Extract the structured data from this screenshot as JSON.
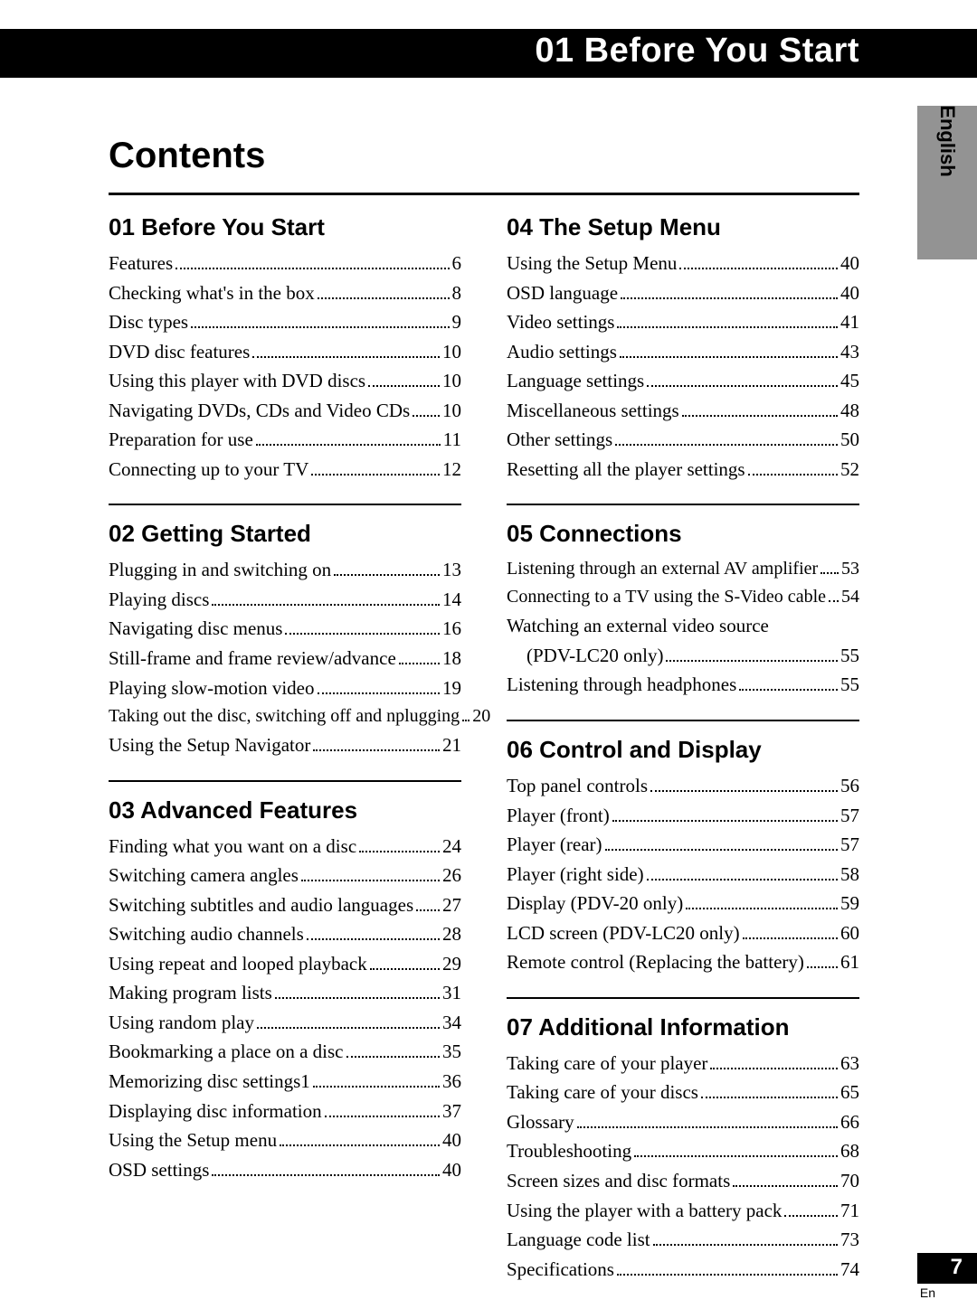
{
  "header": {
    "banner_title": "01 Before You Start",
    "side_tab_label": "English"
  },
  "title": "Contents",
  "columns": [
    {
      "sections": [
        {
          "heading": "01 Before You Start",
          "items": [
            {
              "label": "Features",
              "page": "6"
            },
            {
              "label": "Checking what's in the box",
              "page": "8"
            },
            {
              "label": "Disc types",
              "page": "9"
            },
            {
              "label": "DVD disc features",
              "page": "10"
            },
            {
              "label": "Using this player with DVD discs",
              "page": "10"
            },
            {
              "label": "Navigating DVDs, CDs and Video CDs",
              "page": "10"
            },
            {
              "label": "Preparation for use",
              "page": "11"
            },
            {
              "label": "Connecting up to your TV",
              "page": "12"
            }
          ]
        },
        {
          "heading": "02 Getting Started",
          "items": [
            {
              "label": "Plugging in and switching on",
              "page": "13"
            },
            {
              "label": "Playing discs",
              "page": "14"
            },
            {
              "label": "Navigating disc menus",
              "page": "16"
            },
            {
              "label": "Still-frame and frame review/advance",
              "page": "18"
            },
            {
              "label": "Playing slow-motion video",
              "page": "19"
            },
            {
              "label": "Taking out the disc, switching off and nplugging",
              "page": "20",
              "tight": true
            },
            {
              "label": "Using the Setup Navigator",
              "page": "21"
            }
          ]
        },
        {
          "heading": "03 Advanced Features",
          "items": [
            {
              "label": "Finding what you want on a disc",
              "page": "24"
            },
            {
              "label": "Switching camera angles",
              "page": "26"
            },
            {
              "label": "Switching subtitles and audio languages",
              "page": "27"
            },
            {
              "label": "Switching audio channels",
              "page": "28"
            },
            {
              "label": "Using repeat and looped playback",
              "page": "29"
            },
            {
              "label": "Making program lists",
              "page": "31"
            },
            {
              "label": "Using random play",
              "page": "34"
            },
            {
              "label": "Bookmarking a place on a disc",
              "page": "35"
            },
            {
              "label": "Memorizing disc settings1",
              "page": "36"
            },
            {
              "label": "Displaying disc information",
              "page": "37"
            },
            {
              "label": "Using the Setup menu",
              "page": "40"
            },
            {
              "label": "OSD settings",
              "page": "40"
            }
          ]
        }
      ]
    },
    {
      "sections": [
        {
          "heading": "04 The Setup Menu",
          "items": [
            {
              "label": "Using the Setup Menu",
              "page": "40"
            },
            {
              "label": "OSD language",
              "page": "40"
            },
            {
              "label": "Video settings",
              "page": "41"
            },
            {
              "label": "Audio settings",
              "page": "43"
            },
            {
              "label": "Language settings",
              "page": "45"
            },
            {
              "label": "Miscellaneous settings",
              "page": "48"
            },
            {
              "label": "Other settings",
              "page": "50"
            },
            {
              "label": "Resetting all the player settings",
              "page": "52"
            }
          ]
        },
        {
          "heading": "05 Connections",
          "items": [
            {
              "label": "Listening through an external AV amplifier",
              "page": "53",
              "tight": true
            },
            {
              "label": "Connecting to a TV using the S-Video cable",
              "page": "54",
              "tight": true
            },
            {
              "label": "Watching an external video source (PDV-LC20 only)",
              "page": "55",
              "indent_wrap": true
            },
            {
              "label": "Listening through headphones",
              "page": "55"
            }
          ]
        },
        {
          "heading": "06 Control and Display",
          "items": [
            {
              "label": "Top panel controls",
              "page": "56"
            },
            {
              "label": "Player (front)",
              "page": "57"
            },
            {
              "label": "Player (rear)",
              "page": "57"
            },
            {
              "label": "Player (right side)",
              "page": "58"
            },
            {
              "label": "Display (PDV-20 only)",
              "page": "59"
            },
            {
              "label": "LCD screen (PDV-LC20 only)",
              "page": "60"
            },
            {
              "label": "Remote control (Replacing the battery)",
              "page": "61"
            }
          ]
        },
        {
          "heading": "07 Additional Information",
          "items": [
            {
              "label": "Taking care of your player",
              "page": "63"
            },
            {
              "label": "Taking care of your discs",
              "page": "65"
            },
            {
              "label": "Glossary",
              "page": "66"
            },
            {
              "label": "Troubleshooting",
              "page": "68"
            },
            {
              "label": "Screen sizes and disc formats",
              "page": "70"
            },
            {
              "label": "Using the player with a battery pack",
              "page": "71"
            },
            {
              "label": "Language code list",
              "page": "73"
            },
            {
              "label": "Specifications",
              "page": "74"
            }
          ]
        }
      ]
    }
  ],
  "footer": {
    "page_number": "7",
    "lang_abbrev": "En"
  }
}
